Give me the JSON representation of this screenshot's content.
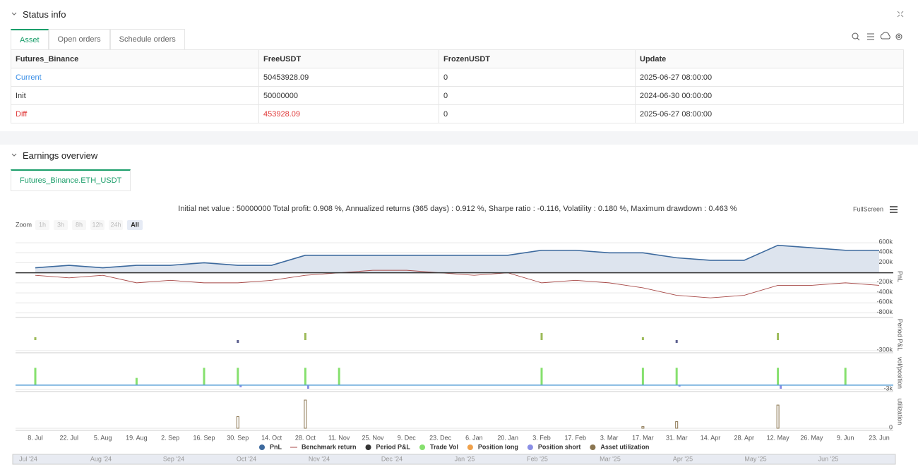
{
  "status_info": {
    "title": "Status info",
    "tabs": [
      "Asset",
      "Open orders",
      "Schedule orders"
    ],
    "table": {
      "headers": [
        "Futures_Binance",
        "FreeUSDT",
        "FrozenUSDT",
        "Update"
      ],
      "rows": [
        [
          "Current",
          "50453928.09",
          "0",
          "2025-06-27 08:00:00"
        ],
        [
          "Init",
          "50000000",
          "0",
          "2024-06-30 00:00:00"
        ],
        [
          "Diff",
          "453928.09",
          "0",
          "2025-06-27 08:00:00"
        ]
      ]
    }
  },
  "earnings": {
    "title": "Earnings overview",
    "tab": "Futures_Binance.ETH_USDT",
    "summary": "Initial net value : 50000000 Total profit: 0.908 %, Annualized returns (365 days) : 0.912 %, Sharpe ratio : -0.116, Volatility : 0.180 %, Maximum drawdown : 0.463 %",
    "fullscreen": "FullScreen",
    "zoom_label": "Zoom",
    "zoom_buttons": [
      "1h",
      "3h",
      "8h",
      "12h",
      "24h",
      "All"
    ],
    "navigator": [
      "Jul '24",
      "Aug '24",
      "Sep '24",
      "Oct '24",
      "Nov '24",
      "Dec '24",
      "Jan '25",
      "Feb '25",
      "Mar '25",
      "Apr '25",
      "May '25",
      "Jun '25"
    ]
  },
  "chart_data": [
    {
      "type": "line",
      "y_label": "PnL",
      "ylim": [
        -850000,
        700000
      ],
      "yticks": [
        {
          "value": 600000,
          "label": "600k"
        },
        {
          "value": 400000,
          "label": "400k"
        },
        {
          "value": 200000,
          "label": "200k"
        },
        {
          "value": -200000,
          "label": "-200k"
        },
        {
          "value": -400000,
          "label": "-400k"
        },
        {
          "value": -600000,
          "label": "-600k"
        },
        {
          "value": -800000,
          "label": "-800k"
        }
      ],
      "series": [
        {
          "name": "PnL",
          "color": "#3d6a9e",
          "area": "#dde4ee",
          "values": [
            100000,
            150000,
            100000,
            150000,
            150000,
            200000,
            150000,
            150000,
            350000,
            350000,
            350000,
            350000,
            350000,
            350000,
            350000,
            450000,
            450000,
            400000,
            400000,
            300000,
            250000,
            250000,
            550000,
            500000,
            450000,
            450000
          ]
        },
        {
          "name": "Benchmark return",
          "color": "#a84a48",
          "values": [
            -50000,
            -100000,
            -50000,
            -200000,
            -150000,
            -200000,
            -200000,
            -150000,
            -50000,
            0,
            50000,
            50000,
            0,
            -50000,
            0,
            -200000,
            -150000,
            -200000,
            -300000,
            -450000,
            -500000,
            -450000,
            -250000,
            -250000,
            -200000,
            -250000
          ]
        }
      ]
    },
    {
      "type": "bar",
      "y_label": "Period P&L",
      "ylim": [
        -300000,
        600000
      ],
      "yticks": [
        {
          "value": -300000,
          "label": "-300k"
        }
      ],
      "series": [
        {
          "name": "Period P&L",
          "color": "#9dbb5a",
          "negative_color": "#5b5f8f",
          "values": [
            80000,
            null,
            null,
            null,
            null,
            null,
            -80000,
            null,
            200000,
            null,
            null,
            null,
            null,
            null,
            null,
            200000,
            null,
            null,
            80000,
            -80000,
            null,
            null,
            200000,
            null,
            null,
            null
          ]
        }
      ]
    },
    {
      "type": "bar",
      "y_label": "vol/position",
      "ylim": [
        -3000,
        20000
      ],
      "yticks": [
        {
          "value": -3000,
          "label": "-3k"
        }
      ],
      "series": [
        {
          "name": "Trade Vol",
          "color": "#86e06e",
          "values": [
            12000,
            null,
            null,
            5000,
            null,
            12000,
            12000,
            null,
            12000,
            12000,
            null,
            null,
            null,
            null,
            null,
            12000,
            null,
            null,
            12000,
            12000,
            null,
            null,
            12000,
            null,
            12000,
            null
          ]
        },
        {
          "name": "Position long",
          "color": "#f0a14a",
          "values": [
            null,
            null,
            null,
            null,
            null,
            null,
            null,
            null,
            null,
            null,
            null,
            null,
            null,
            null,
            null,
            null,
            null,
            null,
            null,
            null,
            null,
            null,
            null,
            null,
            null,
            null
          ]
        },
        {
          "name": "Position short",
          "color": "#8a8fe6",
          "values": [
            null,
            null,
            null,
            null,
            null,
            null,
            -1500,
            null,
            -2500,
            null,
            null,
            null,
            null,
            null,
            null,
            null,
            null,
            null,
            null,
            -1000,
            null,
            null,
            -2500,
            null,
            null,
            null
          ]
        }
      ]
    },
    {
      "type": "bar",
      "y_label": "utilization",
      "ylim": [
        0,
        1
      ],
      "yticks": [
        0
      ],
      "categories": [
        "8. Jul",
        "22. Jul",
        "5. Aug",
        "19. Aug",
        "2. Sep",
        "16. Sep",
        "30. Sep",
        "14. Oct",
        "28. Oct",
        "11. Nov",
        "25. Nov",
        "9. Dec",
        "23. Dec",
        "6. Jan",
        "20. Jan",
        "3. Feb",
        "17. Feb",
        "3. Mar",
        "17. Mar",
        "31. Mar",
        "14. Apr",
        "28. Apr",
        "12. May",
        "26. May",
        "9. Jun",
        "23. Jun"
      ],
      "series": [
        {
          "name": "Asset utilization",
          "color": "#8a7550",
          "values": [
            null,
            null,
            null,
            null,
            null,
            null,
            0.35,
            null,
            0.85,
            null,
            null,
            null,
            null,
            null,
            null,
            null,
            null,
            null,
            0.05,
            0.2,
            null,
            null,
            0.7,
            null,
            null,
            null
          ]
        }
      ]
    }
  ]
}
